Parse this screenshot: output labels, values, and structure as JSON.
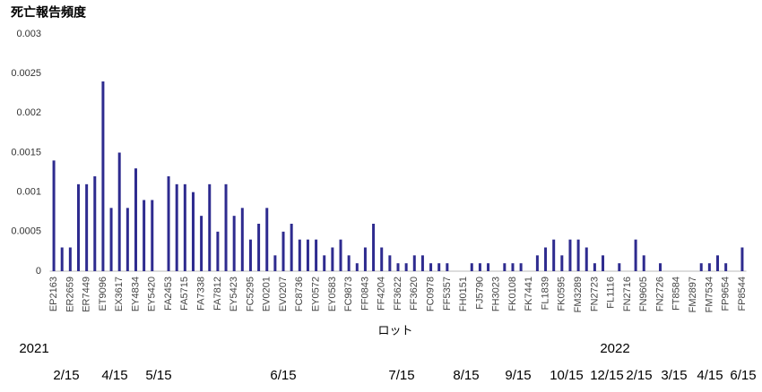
{
  "chart_data": {
    "type": "bar",
    "title": "死亡報告頻度",
    "x_label": "ロット",
    "categories": [
      "EP2163",
      null,
      "ER2659",
      null,
      "ER7449",
      null,
      "ET9096",
      null,
      "EX3617",
      null,
      "EY4834",
      null,
      "EY5420",
      null,
      "FA2453",
      null,
      "FA5715",
      null,
      "FA7338",
      null,
      "FA7812",
      null,
      "EY5423",
      null,
      "FC5295",
      null,
      "EV0201",
      null,
      "EV0207",
      null,
      "FC8736",
      null,
      "EY0572",
      null,
      "EY0583",
      null,
      "FC9873",
      null,
      "FF0843",
      null,
      "FF4204",
      null,
      "FF3622",
      null,
      "FF3620",
      null,
      "FC0978",
      null,
      "FF5357",
      null,
      "FH0151",
      null,
      "FJ5790",
      null,
      "FH3023",
      null,
      "FK0108",
      null,
      "FK7441",
      null,
      "FL1839",
      null,
      "FK0595",
      null,
      "FM3289",
      null,
      "FN2723",
      null,
      "FL1116",
      null,
      "FN2716",
      null,
      "FN9605",
      null,
      "FN2726",
      null,
      "FT8584",
      null,
      "FM2897",
      null,
      "FM7534",
      null,
      "FP9654",
      null,
      "FP8544"
    ],
    "values": [
      0.0014,
      0.0003,
      0.0003,
      0.0011,
      0.0011,
      0.0012,
      0.0024,
      0.0008,
      0.0015,
      0.0008,
      0.0013,
      0.0009,
      0.0009,
      0,
      0.0012,
      0.0011,
      0.0011,
      0.001,
      0.0007,
      0.0011,
      0.0005,
      0.0011,
      0.0007,
      0.0008,
      0.0004,
      0.0006,
      0.0008,
      0.0002,
      0.0005,
      0.0006,
      0.0004,
      0.0004,
      0.0004,
      0.0002,
      0.0003,
      0.0004,
      0.0002,
      0.0001,
      0.0003,
      0.0006,
      0.0003,
      0.0002,
      0.0001,
      0.0001,
      0.0002,
      0.0002,
      0.0001,
      0.0001,
      0.0001,
      0,
      0,
      0.0001,
      0.0001,
      0.0001,
      0,
      0.0001,
      0.0001,
      0.0001,
      0,
      0.0002,
      0.0003,
      0.0004,
      0.0002,
      0.0004,
      0.0004,
      0.0003,
      0.0001,
      0.0002,
      0,
      0.0001,
      0,
      0.0004,
      0.0002,
      0,
      0.0001,
      0,
      0,
      0,
      0,
      0.0001,
      0.0001,
      0.0002,
      0.0001,
      0,
      0.0003
    ],
    "color": "#2e2b8f",
    "ylim": [
      0,
      0.003
    ],
    "yticks": [
      0,
      0.0005,
      0.001,
      0.0015,
      0.002,
      0.0025,
      0.003
    ],
    "grid": false,
    "annotations": [
      "2021",
      "2022",
      "2/15",
      "4/15",
      "5/15",
      "6/15",
      "7/15",
      "8/15",
      "9/15",
      "10/15",
      "12/15",
      "2/15",
      "3/15",
      "4/15",
      "6/15"
    ]
  }
}
